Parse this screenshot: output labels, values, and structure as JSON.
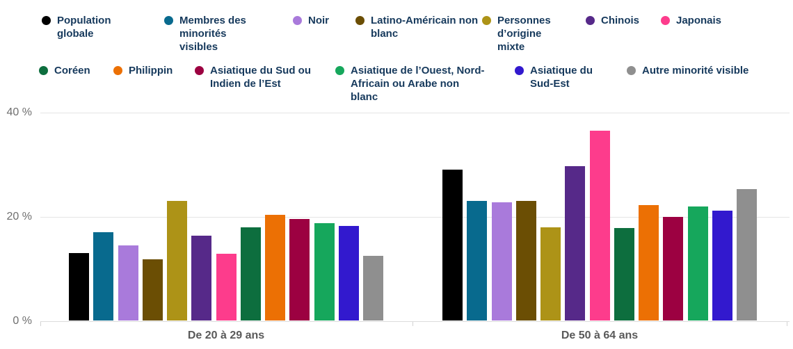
{
  "chart_data": {
    "type": "bar",
    "title": "",
    "categories": [
      "De 20 à 29 ans",
      "De 50 à 64 ans"
    ],
    "y_axis": {
      "ticks": [
        "40 %",
        "20 %",
        "0 %"
      ],
      "ylim": [
        0,
        40
      ],
      "unit": "%"
    },
    "grid": true,
    "legend_position": "top",
    "series": [
      {
        "name": "Population globale",
        "color": "#000000",
        "values": [
          12.9,
          28.9
        ]
      },
      {
        "name": "Membres des minorités visibles",
        "color": "#086A8E",
        "values": [
          16.9,
          22.9
        ]
      },
      {
        "name": "Noir",
        "color": "#A97ADB",
        "values": [
          14.4,
          22.7
        ]
      },
      {
        "name": "Latino-Américain non blanc",
        "color": "#6B4E04",
        "values": [
          11.7,
          22.9
        ]
      },
      {
        "name": "Personnes d’origine mixte",
        "color": "#AD9317",
        "values": [
          22.9,
          17.9
        ]
      },
      {
        "name": "Chinois",
        "color": "#562989",
        "values": [
          16.2,
          29.6
        ]
      },
      {
        "name": "Japonais",
        "color": "#FD3C8C",
        "values": [
          12.8,
          36.4
        ]
      },
      {
        "name": "Coréen",
        "color": "#0D6E3E",
        "values": [
          17.8,
          17.7
        ]
      },
      {
        "name": "Philippin",
        "color": "#EC7004",
        "values": [
          20.2,
          22.1
        ]
      },
      {
        "name": "Asiatique du Sud ou Indien de l’Est",
        "color": "#9C0141",
        "values": [
          19.4,
          19.9
        ]
      },
      {
        "name": "Asiatique de l’Ouest, Nord-Africain ou Arabe non blanc",
        "color": "#16A75C",
        "values": [
          18.6,
          21.9
        ]
      },
      {
        "name": "Asiatique du Sud-Est",
        "color": "#3219CE",
        "values": [
          18.1,
          21.1
        ]
      },
      {
        "name": "Autre minorité visible",
        "color": "#8F8F8F",
        "values": [
          12.4,
          25.2
        ]
      }
    ]
  }
}
